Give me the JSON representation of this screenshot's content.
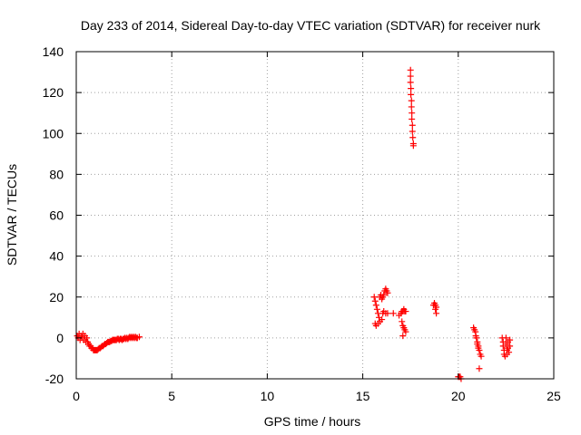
{
  "chart_data": {
    "type": "scatter",
    "title": "Day 233 of 2014, Sidereal Day-to-day VTEC variation (SDTVAR) for receiver nurk",
    "xlabel": "GPS time / hours",
    "ylabel": "SDTVAR / TECUs",
    "xlim": [
      0,
      25
    ],
    "ylim": [
      -20,
      140
    ],
    "xticks": [
      0,
      5,
      10,
      15,
      20,
      25
    ],
    "xtick_labels": [
      "0",
      "5",
      "10",
      "15",
      "20",
      "25"
    ],
    "yticks": [
      -20,
      0,
      20,
      40,
      60,
      80,
      100,
      120,
      140
    ],
    "ytick_labels": [
      "-20",
      "0",
      "20",
      "40",
      "60",
      "80",
      "100",
      "120",
      "140"
    ],
    "grid": true,
    "marker": "plus",
    "color": "#ff0000",
    "series": [
      {
        "name": "SDTVAR",
        "points": [
          [
            0.05,
            1
          ],
          [
            0.1,
            0
          ],
          [
            0.15,
            2
          ],
          [
            0.2,
            -1
          ],
          [
            0.25,
            1
          ],
          [
            0.3,
            0
          ],
          [
            0.35,
            2
          ],
          [
            0.4,
            -1
          ],
          [
            0.45,
            1
          ],
          [
            0.5,
            -2
          ],
          [
            0.55,
            0
          ],
          [
            0.6,
            -2
          ],
          [
            0.65,
            -3
          ],
          [
            0.7,
            -4
          ],
          [
            0.75,
            -4
          ],
          [
            0.8,
            -5
          ],
          [
            0.85,
            -5
          ],
          [
            0.9,
            -6
          ],
          [
            0.95,
            -6
          ],
          [
            1.0,
            -6
          ],
          [
            1.05,
            -6
          ],
          [
            1.1,
            -6
          ],
          [
            1.15,
            -5.5
          ],
          [
            1.2,
            -5
          ],
          [
            1.25,
            -5
          ],
          [
            1.3,
            -4.5
          ],
          [
            1.35,
            -4
          ],
          [
            1.4,
            -4
          ],
          [
            1.45,
            -3.5
          ],
          [
            1.5,
            -3
          ],
          [
            1.55,
            -3
          ],
          [
            1.6,
            -2.5
          ],
          [
            1.65,
            -2
          ],
          [
            1.7,
            -2
          ],
          [
            1.75,
            -2
          ],
          [
            1.8,
            -1.5
          ],
          [
            1.85,
            -1.5
          ],
          [
            1.9,
            -1
          ],
          [
            1.95,
            -1
          ],
          [
            2.0,
            -1
          ],
          [
            2.05,
            -1
          ],
          [
            2.1,
            -1
          ],
          [
            2.15,
            -0.5
          ],
          [
            2.2,
            -0.5
          ],
          [
            2.25,
            -1
          ],
          [
            2.3,
            -0.5
          ],
          [
            2.35,
            -0.5
          ],
          [
            2.4,
            -1
          ],
          [
            2.45,
            -0.5
          ],
          [
            2.5,
            -0.5
          ],
          [
            2.55,
            0
          ],
          [
            2.6,
            -0.5
          ],
          [
            2.65,
            0
          ],
          [
            2.7,
            -0.5
          ],
          [
            2.75,
            0
          ],
          [
            2.8,
            0.5
          ],
          [
            2.85,
            0
          ],
          [
            2.9,
            0.5
          ],
          [
            2.95,
            0
          ],
          [
            3.0,
            0.5
          ],
          [
            3.05,
            0
          ],
          [
            3.1,
            0.5
          ],
          [
            3.15,
            0
          ],
          [
            3.2,
            0
          ],
          [
            3.3,
            0.5
          ],
          [
            15.6,
            20
          ],
          [
            15.65,
            18
          ],
          [
            15.7,
            16
          ],
          [
            15.75,
            14
          ],
          [
            15.8,
            12
          ],
          [
            15.85,
            10
          ],
          [
            15.9,
            20
          ],
          [
            15.95,
            21
          ],
          [
            16.0,
            19
          ],
          [
            16.05,
            20
          ],
          [
            16.1,
            21
          ],
          [
            16.15,
            23
          ],
          [
            16.2,
            24
          ],
          [
            16.25,
            23
          ],
          [
            16.3,
            22
          ],
          [
            15.65,
            7
          ],
          [
            15.7,
            6
          ],
          [
            15.8,
            7
          ],
          [
            15.9,
            8
          ],
          [
            16.0,
            9
          ],
          [
            16.05,
            12
          ],
          [
            16.1,
            13
          ],
          [
            16.2,
            12
          ],
          [
            16.3,
            12
          ],
          [
            16.6,
            12
          ],
          [
            16.9,
            11
          ],
          [
            17.0,
            12
          ],
          [
            17.05,
            13
          ],
          [
            17.1,
            13
          ],
          [
            17.15,
            14
          ],
          [
            17.2,
            13
          ],
          [
            17.25,
            13
          ],
          [
            17.05,
            8
          ],
          [
            17.1,
            6
          ],
          [
            17.15,
            5
          ],
          [
            17.2,
            4
          ],
          [
            17.25,
            3
          ],
          [
            17.1,
            1
          ],
          [
            17.5,
            131
          ],
          [
            17.5,
            128
          ],
          [
            17.5,
            125
          ],
          [
            17.52,
            122
          ],
          [
            17.52,
            119
          ],
          [
            17.55,
            116
          ],
          [
            17.55,
            113
          ],
          [
            17.57,
            110
          ],
          [
            17.57,
            107
          ],
          [
            17.6,
            104
          ],
          [
            17.6,
            101
          ],
          [
            17.62,
            98
          ],
          [
            17.65,
            95
          ],
          [
            17.65,
            94
          ],
          [
            18.7,
            16
          ],
          [
            18.75,
            17
          ],
          [
            18.8,
            16
          ],
          [
            18.85,
            15
          ],
          [
            18.8,
            14
          ],
          [
            18.85,
            12
          ],
          [
            20.0,
            -19
          ],
          [
            20.05,
            -19
          ],
          [
            20.1,
            -19
          ],
          [
            20.15,
            -20
          ],
          [
            20.8,
            5
          ],
          [
            20.85,
            4
          ],
          [
            20.9,
            3
          ],
          [
            20.92,
            1
          ],
          [
            20.95,
            0
          ],
          [
            21.0,
            -2
          ],
          [
            21.0,
            -3
          ],
          [
            21.05,
            -4
          ],
          [
            21.05,
            -5
          ],
          [
            21.1,
            -6
          ],
          [
            21.15,
            -8
          ],
          [
            21.2,
            -9
          ],
          [
            21.1,
            -15
          ],
          [
            22.3,
            0
          ],
          [
            22.35,
            -2
          ],
          [
            22.35,
            -4
          ],
          [
            22.4,
            -6
          ],
          [
            22.4,
            -8
          ],
          [
            22.45,
            -9
          ],
          [
            22.5,
            0
          ],
          [
            22.5,
            -3
          ],
          [
            22.55,
            -6
          ],
          [
            22.55,
            -8
          ],
          [
            22.6,
            -2
          ],
          [
            22.6,
            -5
          ],
          [
            22.65,
            -7
          ],
          [
            22.7,
            -4
          ],
          [
            22.7,
            -1
          ]
        ]
      }
    ]
  }
}
